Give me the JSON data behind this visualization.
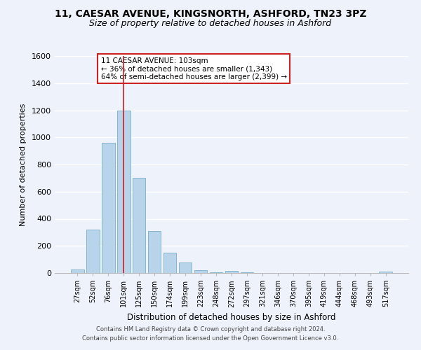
{
  "title_line1": "11, CAESAR AVENUE, KINGSNORTH, ASHFORD, TN23 3PZ",
  "title_line2": "Size of property relative to detached houses in Ashford",
  "xlabel": "Distribution of detached houses by size in Ashford",
  "ylabel": "Number of detached properties",
  "bar_color": "#b8d4ea",
  "bar_edge_color": "#7aaec8",
  "categories": [
    "27sqm",
    "52sqm",
    "76sqm",
    "101sqm",
    "125sqm",
    "150sqm",
    "174sqm",
    "199sqm",
    "223sqm",
    "248sqm",
    "272sqm",
    "297sqm",
    "321sqm",
    "346sqm",
    "370sqm",
    "395sqm",
    "419sqm",
    "444sqm",
    "468sqm",
    "493sqm",
    "517sqm"
  ],
  "values": [
    25,
    320,
    960,
    1200,
    700,
    310,
    150,
    75,
    20,
    5,
    15,
    5,
    0,
    0,
    0,
    0,
    0,
    0,
    0,
    0,
    10
  ],
  "ylim": [
    0,
    1600
  ],
  "yticks": [
    0,
    200,
    400,
    600,
    800,
    1000,
    1200,
    1400,
    1600
  ],
  "annotation_title": "11 CAESAR AVENUE: 103sqm",
  "annotation_line2": "← 36% of detached houses are smaller (1,343)",
  "annotation_line3": "64% of semi-detached houses are larger (2,399) →",
  "footer_line1": "Contains HM Land Registry data © Crown copyright and database right 2024.",
  "footer_line2": "Contains public sector information licensed under the Open Government Licence v3.0.",
  "background_color": "#eef2fa",
  "plot_bg_color": "#eef2fa",
  "grid_color": "#ffffff",
  "vline_bar_index": 3,
  "title_fontsize": 10,
  "subtitle_fontsize": 9
}
